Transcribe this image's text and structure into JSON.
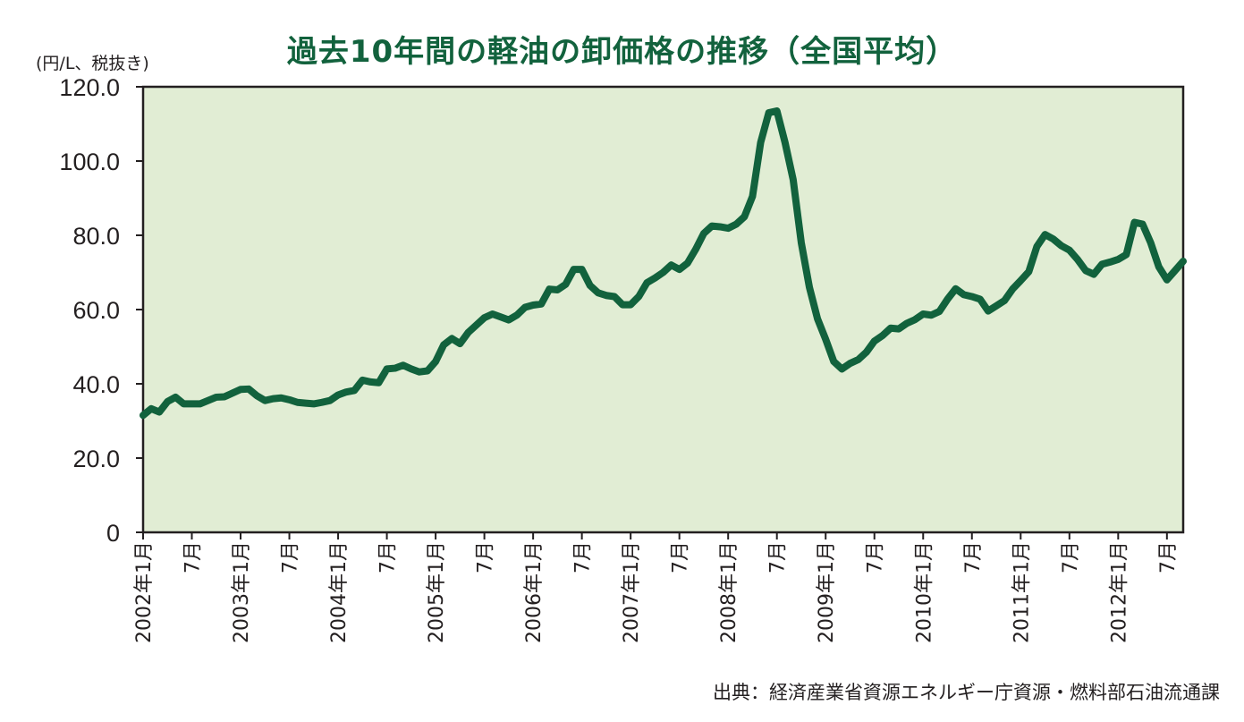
{
  "chart_data": {
    "type": "line",
    "title": "過去10年間の軽油の卸価格の推移（全国平均）",
    "ylabel": "(円/L、税抜き)",
    "xlabel": "",
    "ylim": [
      0,
      120
    ],
    "yticks": [
      "0",
      "20.0",
      "40.0",
      "60.0",
      "80.0",
      "100.0",
      "120.0"
    ],
    "yticks_values": [
      0,
      20,
      40,
      60,
      80,
      100,
      120
    ],
    "x_start": "2002-01",
    "x_end": "2012-10",
    "xtick_labels": [
      {
        "label": "2002年1月",
        "month": 0
      },
      {
        "label": "7月",
        "month": 6
      },
      {
        "label": "2003年1月",
        "month": 12
      },
      {
        "label": "7月",
        "month": 18
      },
      {
        "label": "2004年1月",
        "month": 24
      },
      {
        "label": "7月",
        "month": 30
      },
      {
        "label": "2005年1月",
        "month": 36
      },
      {
        "label": "7月",
        "month": 42
      },
      {
        "label": "2006年1月",
        "month": 48
      },
      {
        "label": "7月",
        "month": 54
      },
      {
        "label": "2007年1月",
        "month": 60
      },
      {
        "label": "7月",
        "month": 66
      },
      {
        "label": "2008年1月",
        "month": 72
      },
      {
        "label": "7月",
        "month": 78
      },
      {
        "label": "2009年1月",
        "month": 84
      },
      {
        "label": "7月",
        "month": 90
      },
      {
        "label": "2010年1月",
        "month": 96
      },
      {
        "label": "7月",
        "month": 102
      },
      {
        "label": "2011年1月",
        "month": 108
      },
      {
        "label": "7月",
        "month": 114
      },
      {
        "label": "2012年1月",
        "month": 120
      },
      {
        "label": "7月",
        "month": 126
      }
    ],
    "grid": false,
    "series": [
      {
        "values": [
          31.5,
          33.3,
          32.4,
          35.2,
          36.4,
          34.6,
          34.6,
          34.6,
          35.5,
          36.4,
          36.5,
          37.5,
          38.5,
          38.6,
          36.8,
          35.5,
          36.0,
          36.2,
          35.7,
          35.0,
          34.8,
          34.6,
          35.0,
          35.5,
          37.0,
          37.8,
          38.2,
          41.0,
          40.5,
          40.3,
          44.0,
          44.2,
          45.0,
          44.0,
          43.2,
          43.5,
          46.0,
          50.5,
          52.2,
          50.8,
          53.8,
          55.8,
          57.8,
          58.8,
          58.0,
          57.2,
          58.5,
          60.6,
          61.2,
          61.5,
          65.5,
          65.3,
          66.8,
          70.8,
          70.8,
          66.5,
          64.5,
          63.8,
          63.5,
          61.3,
          61.3,
          63.5,
          67.2,
          68.5,
          70.0,
          72.0,
          70.8,
          72.5,
          76.2,
          80.5,
          82.5,
          82.3,
          81.9,
          83.0,
          85.0,
          90.5,
          105.0,
          113.0,
          113.5,
          105.0,
          95.0,
          78.0,
          66.0,
          57.5,
          52.0,
          46.0,
          44.0,
          45.5,
          46.5,
          48.5,
          51.5,
          53.0,
          55.0,
          54.8,
          56.3,
          57.3,
          58.8,
          58.5,
          59.5,
          62.8,
          65.6,
          64.0,
          63.5,
          62.8,
          59.6,
          61.0,
          62.4,
          65.5,
          67.8,
          70.2,
          77.0,
          80.2,
          79.0,
          77.2,
          76.0,
          73.5,
          70.5,
          69.5,
          72.2,
          72.8,
          73.5,
          74.8,
          83.5,
          83.0,
          78.0,
          71.5,
          68.0,
          70.5,
          73.0
        ]
      }
    ],
    "plot_background": "#e1edd4",
    "line_color": "#12623d",
    "title_color": "#12623d",
    "axis_color": "#231f20",
    "source": "出典：経済産業省資源エネルギー庁資源・燃料部石油流通課"
  }
}
